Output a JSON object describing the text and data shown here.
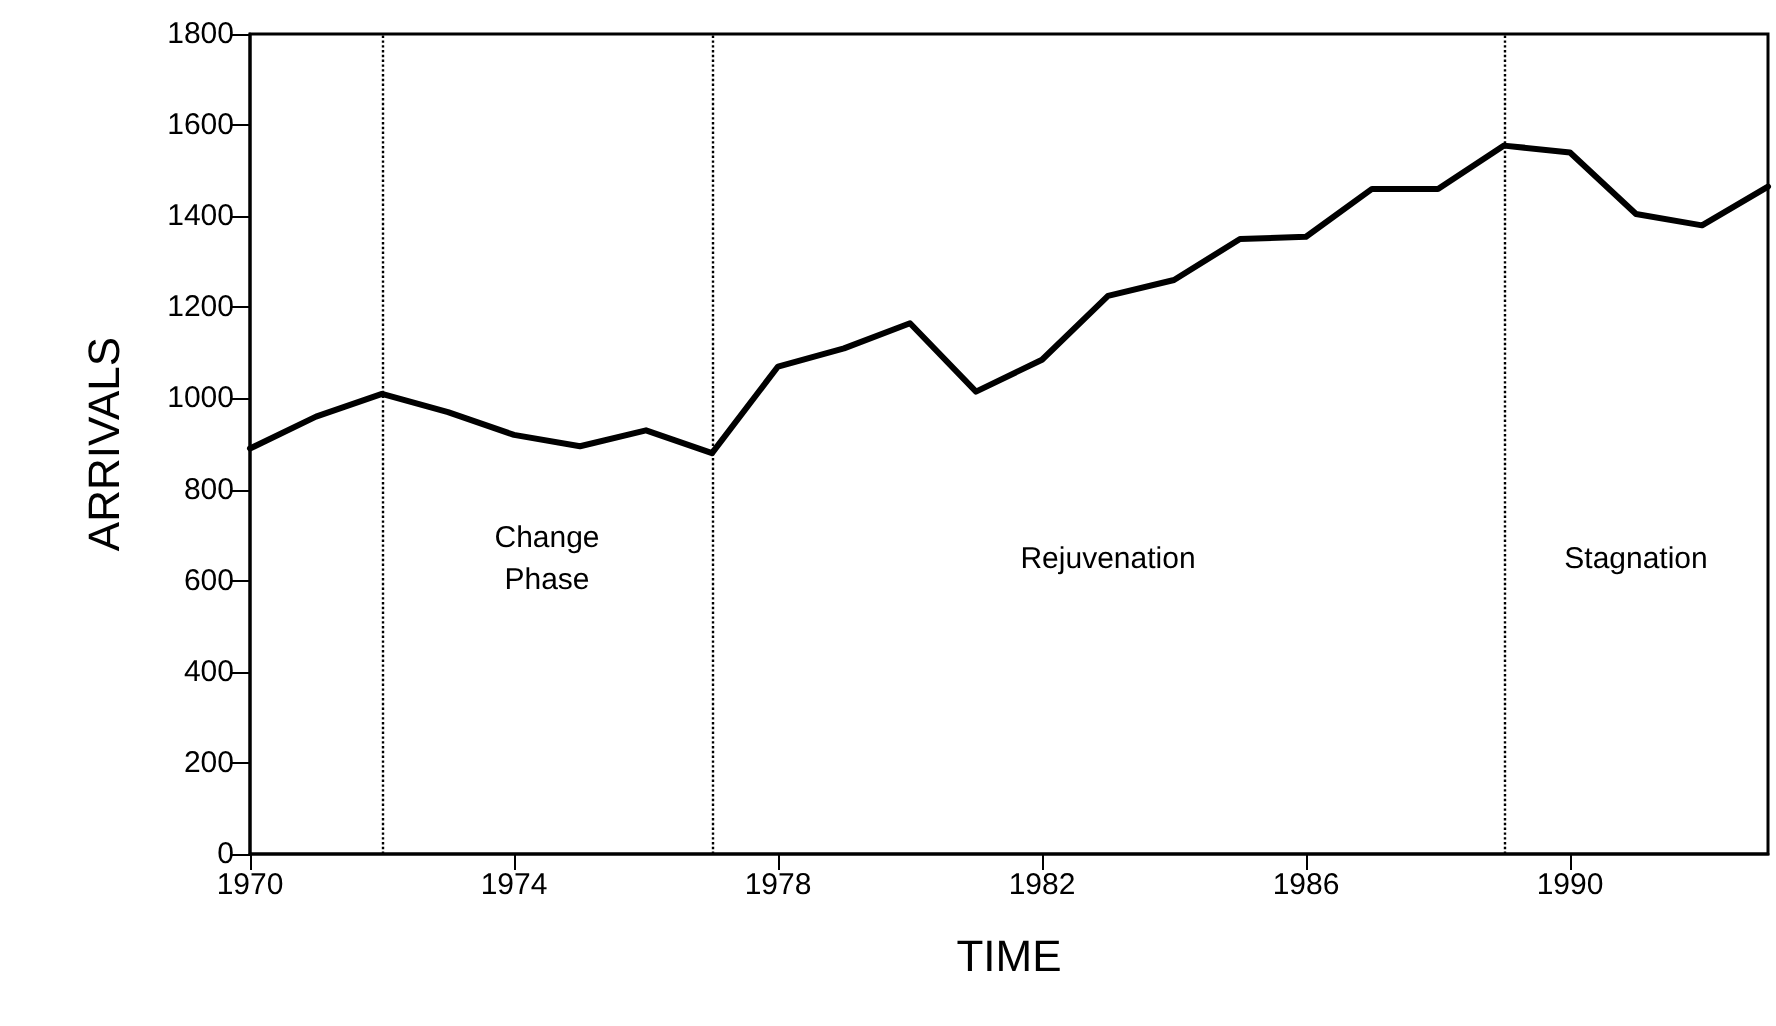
{
  "chart_data": {
    "type": "line",
    "xlabel": "TIME",
    "ylabel": "ARRIVALS",
    "x": [
      1970,
      1971,
      1972,
      1973,
      1974,
      1975,
      1976,
      1977,
      1978,
      1979,
      1980,
      1981,
      1982,
      1983,
      1984,
      1985,
      1986,
      1987,
      1988,
      1989,
      1990,
      1991,
      1992,
      1993
    ],
    "series": [
      {
        "color": "#000000",
        "values": [
          890,
          960,
          1010,
          970,
          920,
          895,
          930,
          880,
          1070,
          1110,
          1165,
          1015,
          1085,
          1225,
          1260,
          1350,
          1355,
          1460,
          1460,
          1555,
          1540,
          1405,
          1380,
          1465
        ]
      }
    ],
    "xlim": [
      1970,
      1993
    ],
    "xticks": [
      1970,
      1974,
      1978,
      1982,
      1986,
      1990
    ],
    "ylim": [
      0,
      1800
    ],
    "yticks": [
      0,
      200,
      400,
      600,
      800,
      1000,
      1200,
      1400,
      1600,
      1800
    ],
    "grid": false,
    "marker": "none",
    "line_style": "solid",
    "ref_lines": [
      {
        "axis": "x",
        "value": 1972,
        "line_style": "dotted",
        "color": "#000000"
      },
      {
        "axis": "x",
        "value": 1977,
        "line_style": "dotted",
        "color": "#000000"
      },
      {
        "axis": "x",
        "value": 1989,
        "line_style": "dotted",
        "color": "#000000"
      }
    ],
    "annotations": [
      "Change\nPhase",
      "Rejuvenation",
      "Stagnation"
    ]
  }
}
